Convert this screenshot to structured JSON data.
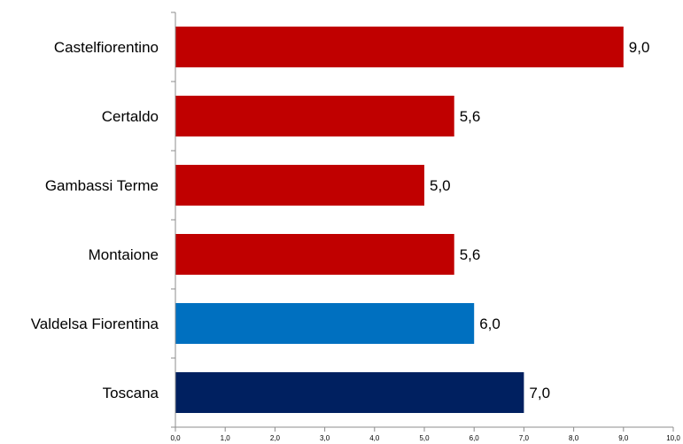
{
  "chart_data": {
    "type": "bar",
    "orientation": "horizontal",
    "categories": [
      "Castelfiorentino",
      "Certaldo",
      "Gambassi Terme",
      "Montaione",
      "Valdelsa Fiorentina",
      "Toscana"
    ],
    "values": [
      9.0,
      5.6,
      5.0,
      5.6,
      6.0,
      7.0
    ],
    "value_labels": [
      "9,0",
      "5,6",
      "5,0",
      "5,6",
      "6,0",
      "7,0"
    ],
    "bar_colors": [
      "#C00000",
      "#C00000",
      "#C00000",
      "#C00000",
      "#0070C0",
      "#002060"
    ],
    "xlim": [
      0,
      10
    ],
    "x_ticks": [
      "0,0",
      "1,0",
      "2,0",
      "3,0",
      "4,0",
      "5,0",
      "6,0",
      "7,0",
      "8,0",
      "9,0",
      "10,0"
    ],
    "title": "",
    "xlabel": "",
    "ylabel": "",
    "grid": false,
    "legend": "none"
  }
}
